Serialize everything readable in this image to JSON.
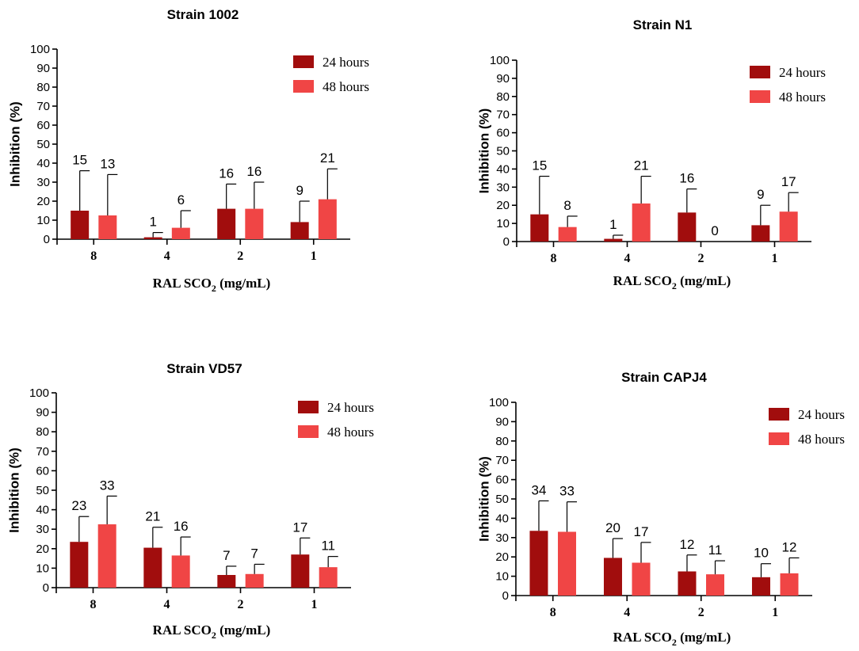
{
  "colors": {
    "series_24h": "#a10d0d",
    "series_48h": "#f04545"
  },
  "chart_data": [
    {
      "type": "bar",
      "title": "Strain 1002",
      "ylabel": "Inhibition (%)",
      "xlabel": {
        "main": "RAL SCO",
        "sub": "2",
        "unit": " (mg/mL)"
      },
      "categories": [
        "8",
        "4",
        "2",
        "1"
      ],
      "ylim": [
        0,
        100
      ],
      "yticks": [
        "0",
        "10",
        "20",
        "30",
        "40",
        "50",
        "60",
        "70",
        "80",
        "90",
        "100"
      ],
      "legend_position": "top-right",
      "series": [
        {
          "name": "24 hours",
          "values": [
            15,
            1,
            16,
            9
          ],
          "labels": [
            "15",
            "1",
            "16",
            "9"
          ],
          "error_top": [
            36,
            3.5,
            29,
            20
          ]
        },
        {
          "name": "48 hours",
          "values": [
            12.5,
            6,
            16,
            21
          ],
          "labels": [
            "13",
            "6",
            "16",
            "21"
          ],
          "error_top": [
            34,
            15,
            30,
            37
          ]
        }
      ]
    },
    {
      "type": "bar",
      "title": "Strain N1",
      "ylabel": "Inhibition (%)",
      "xlabel": {
        "main": "RAL SCO",
        "sub": "2",
        "unit": " (mg/mL)"
      },
      "categories": [
        "8",
        "4",
        "2",
        "1"
      ],
      "ylim": [
        0,
        100
      ],
      "yticks": [
        "0",
        "10",
        "20",
        "30",
        "40",
        "50",
        "60",
        "70",
        "80",
        "90",
        "100"
      ],
      "legend_position": "top-right",
      "series": [
        {
          "name": "24 hours",
          "values": [
            15,
            1.5,
            16,
            9
          ],
          "labels": [
            "15",
            "1",
            "16",
            "9"
          ],
          "error_top": [
            36,
            3.5,
            29,
            20
          ]
        },
        {
          "name": "48 hours",
          "values": [
            8,
            21,
            0,
            16.5
          ],
          "labels": [
            "8",
            "21",
            "0",
            "17"
          ],
          "error_top": [
            14,
            36,
            0,
            27
          ]
        }
      ]
    },
    {
      "type": "bar",
      "title": "Strain VD57",
      "ylabel": "Inhibition (%)",
      "xlabel": {
        "main": "RAL SCO",
        "sub": "2",
        "unit": " (mg/mL)"
      },
      "categories": [
        "8",
        "4",
        "2",
        "1"
      ],
      "ylim": [
        0,
        100
      ],
      "yticks": [
        "0",
        "10",
        "20",
        "30",
        "40",
        "50",
        "60",
        "70",
        "80",
        "90",
        "100"
      ],
      "legend_position": "top-right",
      "series": [
        {
          "name": "24 hours",
          "values": [
            23.5,
            20.5,
            6.5,
            17
          ],
          "labels": [
            "23",
            "21",
            "7",
            "17"
          ],
          "error_top": [
            36.5,
            31,
            11,
            25.5
          ]
        },
        {
          "name": "48 hours",
          "values": [
            32.5,
            16.5,
            7,
            10.5
          ],
          "labels": [
            "33",
            "16",
            "7",
            "11"
          ],
          "error_top": [
            47,
            26,
            12,
            16
          ]
        }
      ]
    },
    {
      "type": "bar",
      "title": "Strain CAPJ4",
      "ylabel": "Inhibition (%)",
      "xlabel": {
        "main": "RAL SCO",
        "sub": "2",
        "unit": " (mg/mL)"
      },
      "categories": [
        "8",
        "4",
        "2",
        "1"
      ],
      "ylim": [
        0,
        100
      ],
      "yticks": [
        "0",
        "10",
        "20",
        "30",
        "40",
        "50",
        "60",
        "70",
        "80",
        "90",
        "100"
      ],
      "legend_position": "top-right",
      "series": [
        {
          "name": "24 hours",
          "values": [
            33.5,
            19.5,
            12.5,
            9.5
          ],
          "labels": [
            "34",
            "20",
            "12",
            "10"
          ],
          "error_top": [
            49,
            29.5,
            21,
            16.5
          ]
        },
        {
          "name": "48 hours",
          "values": [
            33,
            17,
            11,
            11.5
          ],
          "labels": [
            "33",
            "17",
            "11",
            "12"
          ],
          "error_top": [
            48.5,
            27.5,
            18,
            19.5
          ]
        }
      ]
    }
  ]
}
